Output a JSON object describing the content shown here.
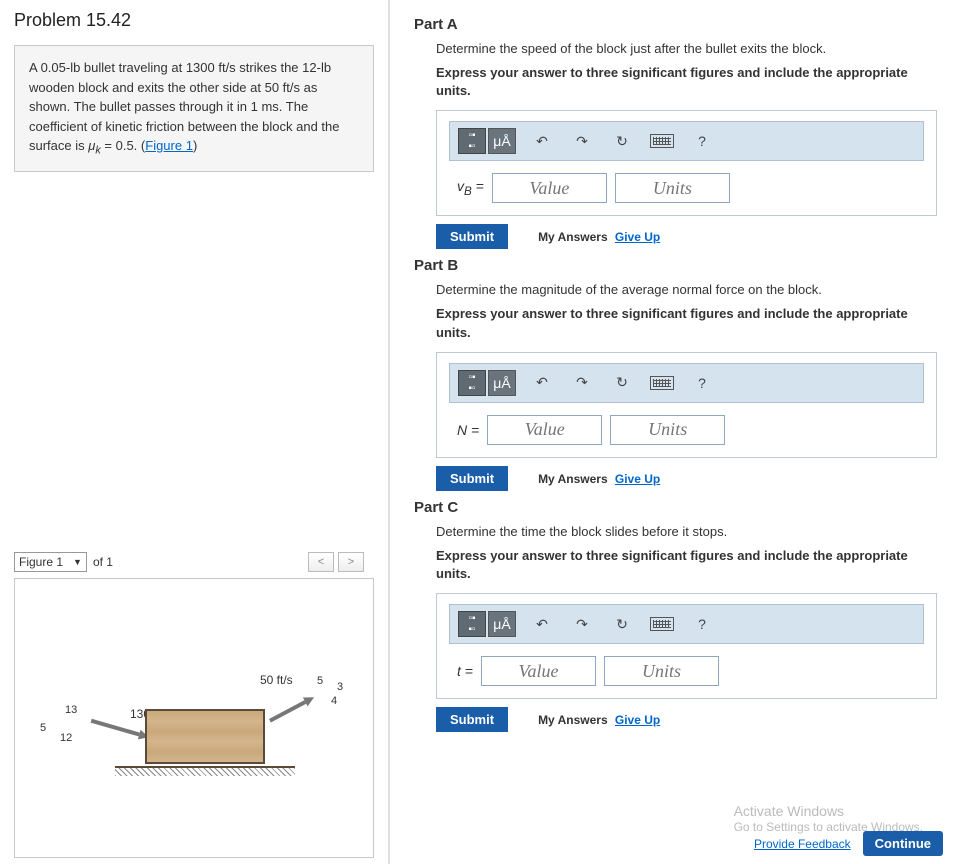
{
  "problem": {
    "title": "Problem 15.42",
    "text_parts": [
      "A 0.05-lb bullet traveling at 1300 ft/s strikes the 12-lb wooden block and exits the other side at 50 ft/s as shown. The bullet passes through it in 1 ms. The coefficient of kinetic friction between the block and the surface is ",
      "μ",
      "k",
      " = 0.5. (",
      "Figure 1",
      ")"
    ]
  },
  "figure": {
    "selector_label": "Figure 1",
    "of_text": "of 1",
    "speed_in": "1300 ft/s",
    "speed_out": "50 ft/s",
    "dim_left_top": "13",
    "dim_left_side": "5",
    "dim_left_bottom": "12",
    "dim_right_top": "5",
    "dim_right_mid": "3",
    "dim_right_bottom": "4"
  },
  "toolbar": {
    "templates_label": "□",
    "greek_label": "μÅ",
    "undo": "↶",
    "redo": "↷",
    "reset": "↻",
    "help": "?"
  },
  "inputs": {
    "value_placeholder": "Value",
    "units_placeholder": "Units"
  },
  "buttons": {
    "submit": "Submit",
    "my_answers": "My Answers",
    "give_up": "Give Up",
    "continue": "Continue",
    "provide_feedback": "Provide Feedback"
  },
  "parts": [
    {
      "title": "Part A",
      "question": "Determine the speed of the block just after the bullet exits the block.",
      "instruction": "Express your answer to three significant figures and include the appropriate units.",
      "var_html": "v<sub>B</sub> ="
    },
    {
      "title": "Part B",
      "question": "Determine the magnitude of the average normal force on the block.",
      "instruction": "Express your answer to three significant figures and include the appropriate units.",
      "var_html": "<i>N</i>  ="
    },
    {
      "title": "Part C",
      "question": "Determine the time the block slides before it stops.",
      "instruction": "Express your answer to three significant figures and include the appropriate units.",
      "var_html": "<i>t</i>  ="
    }
  ],
  "watermark": {
    "line1": "Activate Windows",
    "line2": "Go to Settings to activate Windows."
  }
}
